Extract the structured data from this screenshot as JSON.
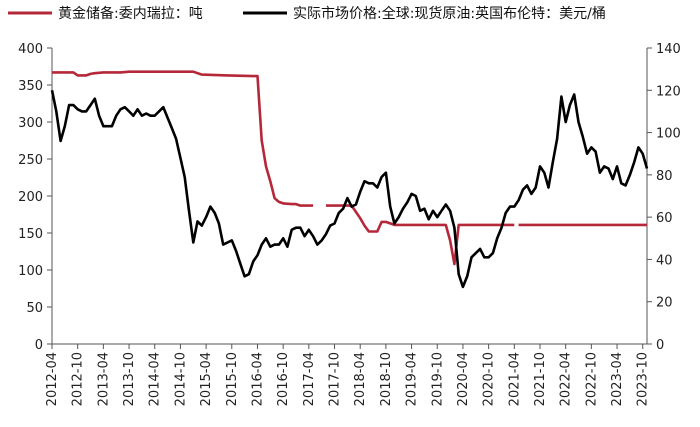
{
  "chart_data": {
    "type": "line",
    "legend_position": "top",
    "grid": false,
    "colors": {
      "gold": "#b5283a",
      "oil": "#000000",
      "axis": "#555555"
    },
    "y_left": {
      "range": [
        0,
        400
      ],
      "ticks": [
        "0",
        "50",
        "100",
        "150",
        "200",
        "250",
        "300",
        "350",
        "400"
      ]
    },
    "y_right": {
      "range": [
        0,
        140
      ],
      "ticks": [
        "0",
        "20",
        "40",
        "60",
        "80",
        "100",
        "120",
        "140"
      ]
    },
    "x_ticks": [
      "2012-04",
      "2012-10",
      "2013-04",
      "2013-10",
      "2014-04",
      "2014-10",
      "2015-04",
      "2015-10",
      "2016-04",
      "2016-10",
      "2017-04",
      "2017-10",
      "2018-04",
      "2018-10",
      "2019-04",
      "2019-10",
      "2020-04",
      "2020-10",
      "2021-04",
      "2021-10",
      "2022-04",
      "2022-10",
      "2023-04",
      "2023-10"
    ],
    "series": [
      {
        "name": "黄金储备:委内瑞拉：吨",
        "axis": "left",
        "color": "#b5283a",
        "points": [
          [
            "2012-04",
            367
          ],
          [
            "2012-07",
            367
          ],
          [
            "2012-09",
            367
          ],
          [
            "2012-10",
            363
          ],
          [
            "2012-12",
            363
          ],
          [
            "2013-01",
            365
          ],
          [
            "2013-02",
            366
          ],
          [
            "2013-04",
            367
          ],
          [
            "2013-08",
            367
          ],
          [
            "2013-10",
            368
          ],
          [
            "2014-04",
            368
          ],
          [
            "2014-10",
            368
          ],
          [
            "2015-01",
            368
          ],
          [
            "2015-03",
            364
          ],
          [
            "2015-09",
            363
          ],
          [
            "2016-03",
            362
          ],
          [
            "2016-04",
            362
          ],
          [
            "2016-05",
            275
          ],
          [
            "2016-06",
            240
          ],
          [
            "2016-07",
            220
          ],
          [
            "2016-08",
            197
          ],
          [
            "2016-09",
            192
          ],
          [
            "2016-10",
            190
          ],
          [
            "2016-12",
            189
          ],
          [
            "2017-01",
            189
          ],
          [
            "2017-02",
            187
          ],
          [
            "2017-04",
            187
          ],
          [
            "2017-05",
            187
          ],
          [
            null,
            null
          ],
          [
            "2017-08",
            187
          ],
          [
            "2017-10",
            187
          ],
          [
            "2017-12",
            187
          ],
          [
            "2018-02",
            187
          ],
          [
            "2018-04",
            170
          ],
          [
            "2018-05",
            160
          ],
          [
            "2018-06",
            152
          ],
          [
            "2018-08",
            152
          ],
          [
            "2018-09",
            165
          ],
          [
            "2018-10",
            165
          ],
          [
            "2018-12",
            161
          ],
          [
            "2019-06",
            161
          ],
          [
            "2019-10",
            161
          ],
          [
            "2019-12",
            161
          ],
          [
            "2020-01",
            140
          ],
          [
            "2020-02",
            108
          ],
          [
            "2020-03",
            161
          ],
          [
            "2020-06",
            161
          ],
          [
            "2021-01",
            161
          ],
          [
            "2021-04",
            161
          ],
          [
            null,
            null
          ],
          [
            "2021-05",
            161
          ],
          [
            "2022-01",
            161
          ],
          [
            "2022-10",
            161
          ],
          [
            "2023-04",
            161
          ],
          [
            "2023-10",
            161
          ],
          [
            "2023-11",
            161
          ]
        ]
      },
      {
        "name": "实际市场价格:全球:现货原油:英国布伦特：美元/桶",
        "axis": "right",
        "color": "#000000",
        "points": [
          [
            "2012-04",
            120
          ],
          [
            "2012-05",
            110
          ],
          [
            "2012-06",
            96
          ],
          [
            "2012-07",
            103
          ],
          [
            "2012-08",
            113
          ],
          [
            "2012-09",
            113
          ],
          [
            "2012-10",
            111
          ],
          [
            "2012-11",
            110
          ],
          [
            "2012-12",
            110
          ],
          [
            "2013-01",
            113
          ],
          [
            "2013-02",
            116
          ],
          [
            "2013-03",
            108
          ],
          [
            "2013-04",
            103
          ],
          [
            "2013-05",
            103
          ],
          [
            "2013-06",
            103
          ],
          [
            "2013-07",
            108
          ],
          [
            "2013-08",
            111
          ],
          [
            "2013-09",
            112
          ],
          [
            "2013-10",
            110
          ],
          [
            "2013-11",
            108
          ],
          [
            "2013-12",
            111
          ],
          [
            "2014-01",
            108
          ],
          [
            "2014-02",
            109
          ],
          [
            "2014-03",
            108
          ],
          [
            "2014-04",
            108
          ],
          [
            "2014-05",
            110
          ],
          [
            "2014-06",
            112
          ],
          [
            "2014-07",
            107
          ],
          [
            "2014-08",
            102
          ],
          [
            "2014-09",
            97
          ],
          [
            "2014-10",
            88
          ],
          [
            "2014-11",
            79
          ],
          [
            "2014-12",
            63
          ],
          [
            "2015-01",
            48
          ],
          [
            "2015-02",
            58
          ],
          [
            "2015-03",
            56
          ],
          [
            "2015-04",
            60
          ],
          [
            "2015-05",
            65
          ],
          [
            "2015-06",
            62
          ],
          [
            "2015-07",
            57
          ],
          [
            "2015-08",
            47
          ],
          [
            "2015-09",
            48
          ],
          [
            "2015-10",
            49
          ],
          [
            "2015-11",
            44
          ],
          [
            "2015-12",
            38
          ],
          [
            "2016-01",
            32
          ],
          [
            "2016-02",
            33
          ],
          [
            "2016-03",
            39
          ],
          [
            "2016-04",
            42
          ],
          [
            "2016-05",
            47
          ],
          [
            "2016-06",
            50
          ],
          [
            "2016-07",
            46
          ],
          [
            "2016-08",
            47
          ],
          [
            "2016-09",
            47
          ],
          [
            "2016-10",
            50
          ],
          [
            "2016-11",
            46
          ],
          [
            "2016-12",
            54
          ],
          [
            "2017-01",
            55
          ],
          [
            "2017-02",
            55
          ],
          [
            "2017-03",
            51
          ],
          [
            "2017-04",
            54
          ],
          [
            "2017-05",
            51
          ],
          [
            "2017-06",
            47
          ],
          [
            "2017-07",
            49
          ],
          [
            "2017-08",
            52
          ],
          [
            "2017-09",
            56
          ],
          [
            "2017-10",
            57
          ],
          [
            "2017-11",
            62
          ],
          [
            "2017-12",
            64
          ],
          [
            "2018-01",
            69
          ],
          [
            "2018-02",
            65
          ],
          [
            "2018-03",
            66
          ],
          [
            "2018-04",
            72
          ],
          [
            "2018-05",
            77
          ],
          [
            "2018-06",
            76
          ],
          [
            "2018-07",
            76
          ],
          [
            "2018-08",
            74
          ],
          [
            "2018-09",
            79
          ],
          [
            "2018-10",
            81
          ],
          [
            "2018-11",
            65
          ],
          [
            "2018-12",
            57
          ],
          [
            "2019-01",
            60
          ],
          [
            "2019-02",
            64
          ],
          [
            "2019-03",
            67
          ],
          [
            "2019-04",
            71
          ],
          [
            "2019-05",
            70
          ],
          [
            "2019-06",
            63
          ],
          [
            "2019-07",
            64
          ],
          [
            "2019-08",
            59
          ],
          [
            "2019-09",
            63
          ],
          [
            "2019-10",
            60
          ],
          [
            "2019-11",
            63
          ],
          [
            "2019-12",
            66
          ],
          [
            "2020-01",
            63
          ],
          [
            "2020-02",
            55
          ],
          [
            "2020-03",
            33
          ],
          [
            "2020-04",
            27
          ],
          [
            "2020-05",
            32
          ],
          [
            "2020-06",
            41
          ],
          [
            "2020-07",
            43
          ],
          [
            "2020-08",
            45
          ],
          [
            "2020-09",
            41
          ],
          [
            "2020-10",
            41
          ],
          [
            "2020-11",
            43
          ],
          [
            "2020-12",
            50
          ],
          [
            "2021-01",
            55
          ],
          [
            "2021-02",
            62
          ],
          [
            "2021-03",
            65
          ],
          [
            "2021-04",
            65
          ],
          [
            "2021-05",
            68
          ],
          [
            "2021-06",
            73
          ],
          [
            "2021-07",
            75
          ],
          [
            "2021-08",
            71
          ],
          [
            "2021-09",
            74
          ],
          [
            "2021-10",
            84
          ],
          [
            "2021-11",
            81
          ],
          [
            "2021-12",
            74
          ],
          [
            "2022-01",
            86
          ],
          [
            "2022-02",
            97
          ],
          [
            "2022-03",
            117
          ],
          [
            "2022-04",
            105
          ],
          [
            "2022-05",
            113
          ],
          [
            "2022-06",
            118
          ],
          [
            "2022-07",
            105
          ],
          [
            "2022-08",
            98
          ],
          [
            "2022-09",
            90
          ],
          [
            "2022-10",
            93
          ],
          [
            "2022-11",
            91
          ],
          [
            "2022-12",
            81
          ],
          [
            "2023-01",
            84
          ],
          [
            "2023-02",
            83
          ],
          [
            "2023-03",
            78
          ],
          [
            "2023-04",
            84
          ],
          [
            "2023-05",
            76
          ],
          [
            "2023-06",
            75
          ],
          [
            "2023-07",
            80
          ],
          [
            "2023-08",
            86
          ],
          [
            "2023-09",
            93
          ],
          [
            "2023-10",
            90
          ],
          [
            "2023-11",
            83
          ]
        ]
      }
    ]
  }
}
